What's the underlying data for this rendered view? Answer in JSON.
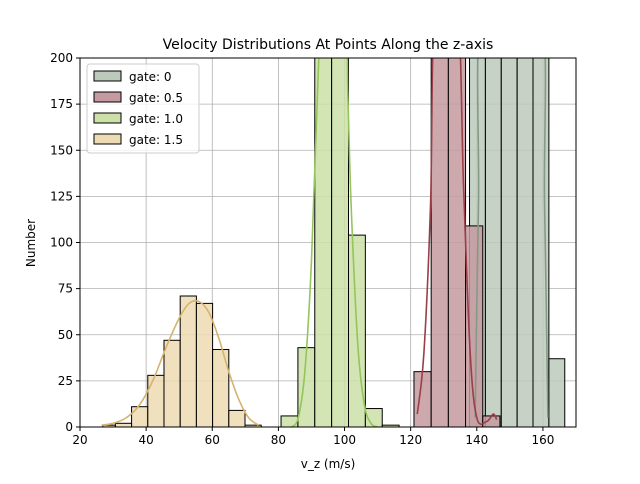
{
  "chart_data": {
    "type": "histogram",
    "title": "Velocity Distributions At Points Along the z-axis",
    "xlabel": "v_z (m/s)",
    "ylabel": "Number",
    "xlim": [
      20,
      170
    ],
    "ylim": [
      0,
      200
    ],
    "xticks": [
      20,
      40,
      60,
      80,
      100,
      120,
      140,
      160
    ],
    "yticks": [
      0,
      25,
      50,
      75,
      100,
      125,
      150,
      175,
      200
    ],
    "grid": true,
    "legend_position": "upper-left",
    "series": [
      {
        "name": "gate: 0",
        "fill": "#bccabc",
        "line": "#859a85",
        "bins": [
          {
            "x0": 137.8,
            "x1": 142.6,
            "count": 200
          },
          {
            "x0": 142.6,
            "x1": 147.4,
            "count": 200
          },
          {
            "x0": 147.4,
            "x1": 152.2,
            "count": 200
          },
          {
            "x0": 152.2,
            "x1": 157.0,
            "count": 200
          },
          {
            "x0": 157.0,
            "x1": 161.8,
            "count": 200
          },
          {
            "x0": 161.8,
            "x1": 166.6,
            "count": 37
          }
        ],
        "kde": [
          [
            139.5,
            5
          ],
          [
            140.5,
            120
          ],
          [
            142,
            230
          ],
          [
            159,
            230
          ],
          [
            160.5,
            120
          ],
          [
            161.5,
            5
          ]
        ]
      },
      {
        "name": "gate: 0.5",
        "fill": "#c49aa0",
        "line": "#9a3e48",
        "bins": [
          {
            "x0": 121.0,
            "x1": 126.2,
            "count": 30
          },
          {
            "x0": 126.2,
            "x1": 131.4,
            "count": 200
          },
          {
            "x0": 131.4,
            "x1": 136.6,
            "count": 200
          },
          {
            "x0": 136.6,
            "x1": 141.8,
            "count": 109
          },
          {
            "x0": 141.8,
            "x1": 147.0,
            "count": 6
          }
        ],
        "kde": [
          [
            122,
            7
          ],
          [
            124,
            40
          ],
          [
            126,
            120
          ],
          [
            127.5,
            230
          ],
          [
            134,
            230
          ],
          [
            136,
            130
          ],
          [
            138,
            40
          ],
          [
            140,
            5
          ],
          [
            143,
            3
          ],
          [
            145,
            7
          ],
          [
            146,
            4
          ]
        ]
      },
      {
        "name": "gate: 1.0",
        "fill": "#cde0a8",
        "line": "#93c55a",
        "bins": [
          {
            "x0": 80.8,
            "x1": 85.9,
            "count": 6
          },
          {
            "x0": 85.9,
            "x1": 91.0,
            "count": 43
          },
          {
            "x0": 91.0,
            "x1": 96.1,
            "count": 200
          },
          {
            "x0": 96.1,
            "x1": 101.2,
            "count": 200
          },
          {
            "x0": 101.2,
            "x1": 106.3,
            "count": 104
          },
          {
            "x0": 106.3,
            "x1": 111.4,
            "count": 10
          },
          {
            "x0": 111.4,
            "x1": 116.5,
            "count": 1
          }
        ],
        "kde": [
          [
            84,
            0
          ],
          [
            86,
            5
          ],
          [
            88,
            30
          ],
          [
            90,
            90
          ],
          [
            92,
            190
          ],
          [
            93.5,
            230
          ],
          [
            100,
            230
          ],
          [
            101,
            180
          ],
          [
            102,
            120
          ],
          [
            104,
            45
          ],
          [
            106,
            12
          ],
          [
            108,
            2
          ],
          [
            110,
            0
          ]
        ]
      },
      {
        "name": "gate: 1.5",
        "fill": "#eddbb3",
        "line": "#d4b46e",
        "bins": [
          {
            "x0": 26.9,
            "x1": 30.7,
            "count": 1
          },
          {
            "x0": 30.7,
            "x1": 35.6,
            "count": 2
          },
          {
            "x0": 35.6,
            "x1": 40.5,
            "count": 11
          },
          {
            "x0": 40.5,
            "x1": 45.4,
            "count": 28
          },
          {
            "x0": 45.4,
            "x1": 50.3,
            "count": 47
          },
          {
            "x0": 50.3,
            "x1": 55.2,
            "count": 71
          },
          {
            "x0": 55.2,
            "x1": 60.1,
            "count": 67
          },
          {
            "x0": 60.1,
            "x1": 65.0,
            "count": 42
          },
          {
            "x0": 65.0,
            "x1": 69.9,
            "count": 9
          },
          {
            "x0": 69.9,
            "x1": 74.8,
            "count": 1
          }
        ],
        "kde": [
          [
            26.5,
            1
          ],
          [
            30,
            2
          ],
          [
            34,
            5
          ],
          [
            38,
            12
          ],
          [
            42,
            25
          ],
          [
            46,
            43
          ],
          [
            50,
            59
          ],
          [
            53,
            67
          ],
          [
            56,
            68
          ],
          [
            59,
            62
          ],
          [
            62,
            48
          ],
          [
            65,
            30
          ],
          [
            68,
            15
          ],
          [
            71,
            5
          ],
          [
            74,
            1
          ]
        ]
      }
    ]
  }
}
